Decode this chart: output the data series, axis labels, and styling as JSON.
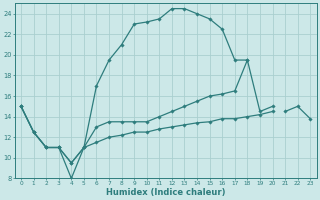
{
  "xlabel": "Humidex (Indice chaleur)",
  "background_color": "#cce8e8",
  "grid_color": "#aacfcf",
  "line_color": "#2e7d7d",
  "xlim": [
    -0.5,
    23.5
  ],
  "ylim": [
    8,
    25
  ],
  "xticks": [
    0,
    1,
    2,
    3,
    4,
    5,
    6,
    7,
    8,
    9,
    10,
    11,
    12,
    13,
    14,
    15,
    16,
    17,
    18,
    19,
    20,
    21,
    22,
    23
  ],
  "yticks": [
    8,
    10,
    12,
    14,
    16,
    18,
    20,
    22,
    24
  ],
  "lines": [
    {
      "x": [
        0,
        1,
        2,
        3,
        4,
        5,
        6,
        7,
        8,
        9,
        10,
        11,
        12,
        13,
        14,
        15,
        16,
        17,
        18
      ],
      "y": [
        15,
        12.5,
        11,
        11,
        8,
        11,
        17,
        19.5,
        21,
        23,
        23.2,
        23.5,
        24.5,
        24.5,
        24,
        23.5,
        22.5,
        19.5,
        19.5
      ]
    },
    {
      "x": [
        0,
        1,
        2,
        3,
        4,
        5,
        6,
        7,
        8,
        9,
        10,
        11,
        12,
        13,
        14,
        15,
        16,
        17,
        18,
        19,
        20
      ],
      "y": [
        15,
        12.5,
        11,
        11,
        9.5,
        11,
        13.0,
        13.5,
        13.5,
        13.5,
        13.5,
        14,
        14.5,
        15,
        15.5,
        16,
        16.2,
        16.5,
        19.5,
        14.5,
        15
      ]
    },
    {
      "x": [
        0,
        1,
        2,
        3,
        4,
        5,
        6,
        7,
        8,
        9,
        10,
        11,
        12,
        13,
        14,
        15,
        16,
        17,
        18,
        19,
        20
      ],
      "y": [
        15,
        12.5,
        11,
        11,
        9.5,
        11,
        11.5,
        12,
        12.2,
        12.5,
        12.5,
        12.8,
        13,
        13.2,
        13.4,
        13.5,
        13.8,
        13.8,
        14,
        14.2,
        14.5
      ]
    },
    {
      "x": [
        21,
        22,
        23
      ],
      "y": [
        14.5,
        15,
        13.8
      ]
    }
  ]
}
